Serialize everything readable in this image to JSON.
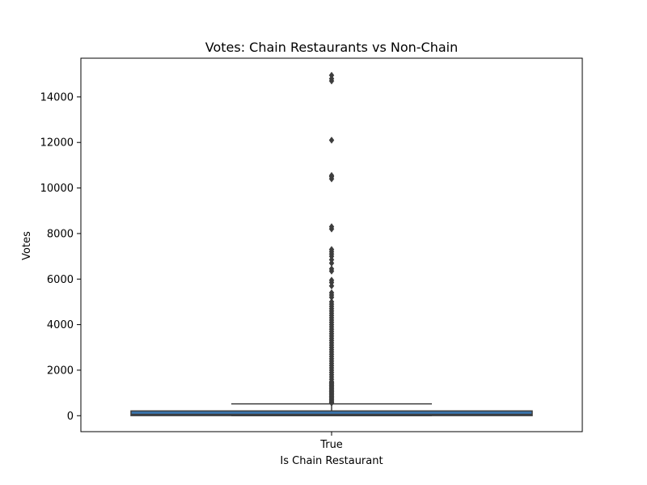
{
  "chart_data": {
    "type": "box",
    "title": "Votes: Chain Restaurants vs Non-Chain",
    "xlabel": "Is Chain Restaurant",
    "ylabel": "Votes",
    "categories": [
      "True"
    ],
    "ylim": [
      -700,
      15700
    ],
    "yticks": [
      0,
      2000,
      4000,
      6000,
      8000,
      10000,
      12000,
      14000
    ],
    "grid": false,
    "legend": "none",
    "box_color": "#3a75ae",
    "line_color": "#3d3d3d",
    "boxes": [
      {
        "category": "True",
        "min": 0,
        "q1": 5,
        "median": 60,
        "q3": 210,
        "whisker_low": 0,
        "whisker_high": 520,
        "outliers": [
          560,
          600,
          650,
          700,
          750,
          800,
          850,
          900,
          950,
          1000,
          1050,
          1100,
          1150,
          1200,
          1250,
          1300,
          1350,
          1400,
          1450,
          1500,
          1600,
          1700,
          1800,
          1900,
          2000,
          2100,
          2200,
          2300,
          2400,
          2500,
          2600,
          2700,
          2800,
          2900,
          3000,
          3100,
          3200,
          3300,
          3400,
          3500,
          3600,
          3700,
          3800,
          3900,
          4000,
          4100,
          4200,
          4300,
          4400,
          4500,
          4600,
          4700,
          4800,
          4900,
          5000,
          5200,
          5300,
          5400,
          5700,
          5850,
          5950,
          6350,
          6450,
          6700,
          6850,
          7000,
          7100,
          7200,
          7300,
          8200,
          8300,
          10400,
          10500,
          10550,
          12100,
          14700,
          14800,
          14950
        ]
      }
    ]
  }
}
